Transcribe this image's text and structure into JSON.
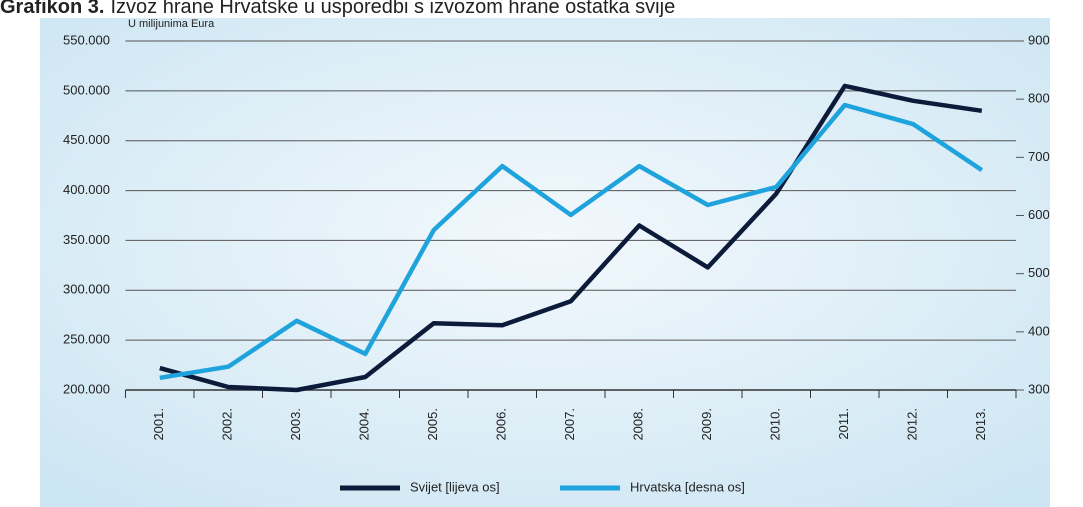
{
  "chart_data": {
    "type": "line",
    "title": "Grafikon 3.",
    "subtitle": "Izvoz hrane Hrvatske u usporedbi s izvozom hrane ostatka svije",
    "y_label": "U milijunima Eura",
    "categories": [
      "2001.",
      "2002.",
      "2003.",
      "2004.",
      "2005.",
      "2006.",
      "2007.",
      "2008.",
      "2009.",
      "2010.",
      "2011.",
      "2012.",
      "2013."
    ],
    "series": [
      {
        "name": "Svijet [lijeva os]",
        "color": "#0d1b3a",
        "values": [
          222000,
          203000,
          200000,
          213000,
          267000,
          265000,
          289000,
          365000,
          323000,
          397000,
          505000,
          490000,
          480000
        ]
      },
      {
        "name": "Hrvatska [desna os]",
        "color": "#1fa3dc",
        "axis": "y2",
        "values": [
          321,
          340,
          419,
          362,
          575,
          685,
          601,
          685,
          618,
          649,
          790,
          757,
          678
        ]
      }
    ],
    "ylim": [
      200000,
      550000
    ],
    "yticks": [
      {
        "value": 200000,
        "label": "200.000"
      },
      {
        "value": 250000,
        "label": "250.000"
      },
      {
        "value": 300000,
        "label": "300.000"
      },
      {
        "value": 350000,
        "label": "350.000"
      },
      {
        "value": 400000,
        "label": "400.000"
      },
      {
        "value": 450000,
        "label": "450.000"
      },
      {
        "value": 500000,
        "label": "500.000"
      },
      {
        "value": 550000,
        "label": "550.000"
      }
    ],
    "y2lim": [
      300,
      900
    ],
    "y2ticks": [
      300,
      400,
      500,
      600,
      700,
      800,
      900
    ],
    "grid": true,
    "legend": "bottom"
  }
}
